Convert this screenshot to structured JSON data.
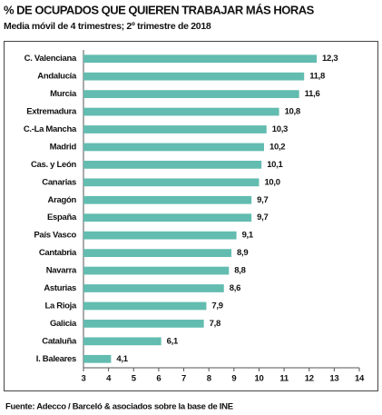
{
  "chart_data": {
    "type": "bar",
    "orientation": "horizontal",
    "title": "% DE OCUPADOS QUE QUIEREN TRABAJAR MÁS HORAS",
    "subtitle": "Media móvil de 4 trimestres; 2º trimestre de 2018",
    "source": "Fuente: Adecco / Barceló & asociados sobre la base de INE",
    "categories": [
      "C. Valenciana",
      "Andalucía",
      "Murcia",
      "Extremadura",
      "C.-La Mancha",
      "Madrid",
      "Cas. y León",
      "Canarias",
      "Aragón",
      "España",
      "País Vasco",
      "Cantabria",
      "Navarra",
      "Asturias",
      "La Rioja",
      "Galicia",
      "Cataluña",
      "I. Baleares"
    ],
    "values": [
      12.3,
      11.8,
      11.6,
      10.8,
      10.3,
      10.2,
      10.1,
      10.0,
      9.7,
      9.7,
      9.1,
      8.9,
      8.8,
      8.6,
      7.9,
      7.8,
      6.1,
      4.1
    ],
    "value_labels": [
      "12,3",
      "11,8",
      "11,6",
      "10,8",
      "10,3",
      "10,2",
      "10,1",
      "10,0",
      "9,7",
      "9,7",
      "9,1",
      "8,9",
      "8,8",
      "8,6",
      "7,9",
      "7,8",
      "6,1",
      "4,1"
    ],
    "color": "#62bcb0",
    "xlim": [
      3,
      14
    ],
    "xticks": [
      3,
      4,
      5,
      6,
      7,
      8,
      9,
      10,
      11,
      12,
      13,
      14
    ],
    "grid": false
  }
}
